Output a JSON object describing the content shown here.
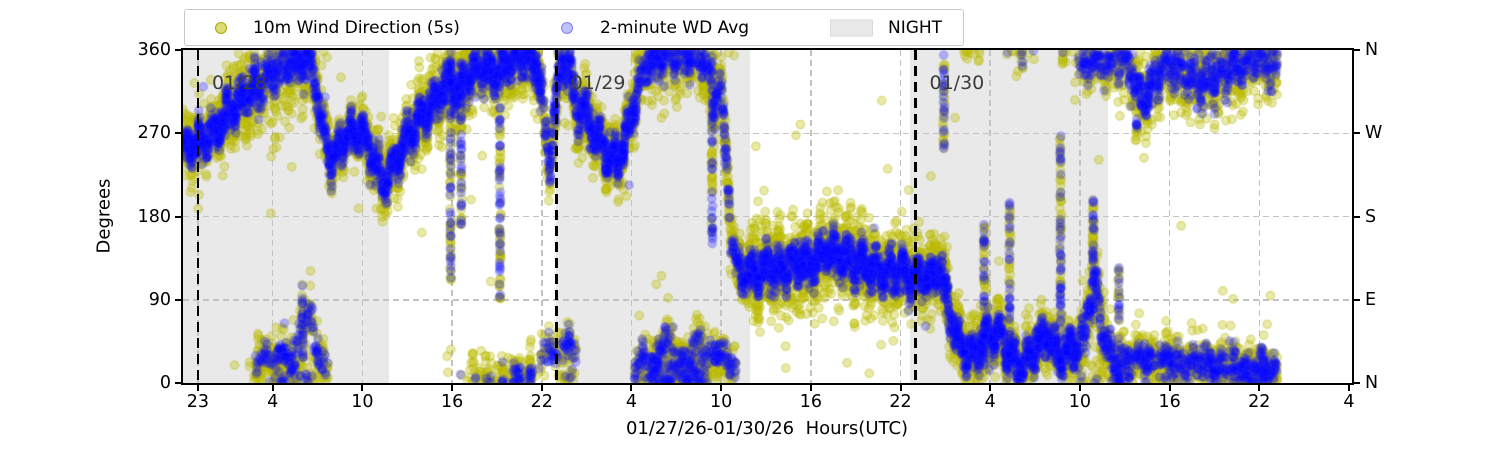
{
  "chart_data": {
    "type": "scatter",
    "title": "",
    "xlabel": "01/27/26-01/30/26  Hours(UTC)",
    "ylabel": "Degrees",
    "ylim": [
      0,
      360
    ],
    "x_range": [
      -1.0,
      77.2
    ],
    "grid": "dashed",
    "grid_color": "#c3c3c3",
    "background": "#ffffff",
    "night_color": "#e9e9e9",
    "legend_items": [
      {
        "label": "10m Wind Direction (5s)",
        "marker": "dot",
        "color": "#bfbf00",
        "face": "rgba(191,191,0,0.55)",
        "edge": "rgba(160,160,0,0.85)"
      },
      {
        "label": "2-minute WD Avg",
        "marker": "dot",
        "color": "#0000ff",
        "face": "rgba(130,130,245,0.50)",
        "edge": "rgba(100,100,230,0.70)"
      },
      {
        "label": "NIGHT",
        "marker": "patch",
        "color": "#e9e9e9",
        "face": "#e9e9e9",
        "edge": "#d8d8d8"
      }
    ],
    "xticks": [
      [
        0,
        "23"
      ],
      [
        5,
        "4"
      ],
      [
        11,
        "10"
      ],
      [
        17,
        "16"
      ],
      [
        23,
        "22"
      ],
      [
        29,
        "4"
      ],
      [
        35,
        "10"
      ],
      [
        41,
        "16"
      ],
      [
        47,
        "22"
      ],
      [
        53,
        "4"
      ],
      [
        59,
        "10"
      ],
      [
        65,
        "16"
      ],
      [
        71,
        "22"
      ],
      [
        77,
        "4"
      ]
    ],
    "yticks": [
      [
        0,
        "0",
        "N"
      ],
      [
        90,
        "90",
        "E"
      ],
      [
        180,
        "180",
        "S"
      ],
      [
        270,
        "270",
        "W"
      ],
      [
        360,
        "360",
        "N"
      ]
    ],
    "night_bands": [
      [
        -1.0,
        12.8
      ],
      [
        23.95,
        36.9
      ],
      [
        47.6,
        60.9
      ]
    ],
    "date_lines": [
      [
        0,
        "01/28"
      ],
      [
        24,
        "01/29"
      ],
      [
        48,
        "01/30"
      ]
    ],
    "data_t_range": [
      -1.0,
      72.2
    ],
    "series": [
      {
        "name": "10m Wind Direction (5s)",
        "cadence": "5s",
        "fill": "rgba(191,191,0,0.34)",
        "stroke": "rgba(178,178,0,0.38)",
        "marker_r": 4.2,
        "n_points": 9500,
        "tail_frac": 0.015,
        "tail_mult": 3.2
      },
      {
        "name": "2-minute WD Avg",
        "cadence": "2min",
        "fill": "rgba(0,0,255,0.26)",
        "stroke": "rgba(40,40,255,0.22)",
        "marker_r": 4.2,
        "n_points": 7500,
        "tail_frac": 0.008,
        "tail_mult": 2.6
      }
    ],
    "trend_anchors": [
      [
        -1,
        252,
        15,
        7
      ],
      [
        -0.2,
        260,
        15,
        7
      ],
      [
        0.6,
        266,
        15,
        7
      ],
      [
        1.4,
        278,
        17,
        8
      ],
      [
        2.2,
        295,
        19,
        8
      ],
      [
        3,
        308,
        22,
        9
      ],
      [
        4,
        320,
        26,
        10
      ],
      [
        5,
        334,
        28,
        10
      ],
      [
        6,
        347,
        28,
        10
      ],
      [
        7,
        352,
        27,
        10
      ],
      [
        7.7,
        344,
        22,
        9
      ],
      [
        8.3,
        278,
        16,
        8
      ],
      [
        9,
        237,
        14,
        7
      ],
      [
        9.5,
        258,
        14,
        7
      ],
      [
        10,
        267,
        14,
        7
      ],
      [
        11,
        271,
        15,
        7
      ],
      [
        11.7,
        243,
        15,
        7
      ],
      [
        12.4,
        216,
        14,
        7
      ],
      [
        13.1,
        236,
        14,
        7
      ],
      [
        14,
        263,
        16,
        8
      ],
      [
        15,
        288,
        18,
        8
      ],
      [
        16,
        307,
        20,
        9
      ],
      [
        16.9,
        328,
        20,
        9
      ],
      [
        17.4,
        312,
        22,
        9
      ],
      [
        18,
        332,
        20,
        9
      ],
      [
        19,
        344,
        20,
        9
      ],
      [
        20,
        334,
        20,
        9
      ],
      [
        21,
        348,
        18,
        9
      ],
      [
        22,
        354,
        18,
        9
      ],
      [
        22.8,
        338,
        18,
        9
      ],
      [
        23.5,
        232,
        16,
        8
      ],
      [
        23.9,
        298,
        18,
        9
      ],
      [
        24.3,
        347,
        18,
        9
      ],
      [
        24.9,
        341,
        18,
        9
      ],
      [
        25.4,
        288,
        18,
        9
      ],
      [
        25.9,
        298,
        18,
        9
      ],
      [
        26.5,
        268,
        18,
        9
      ],
      [
        27.1,
        258,
        16,
        8
      ],
      [
        27.7,
        238,
        16,
        8
      ],
      [
        28.4,
        250,
        16,
        8
      ],
      [
        29.1,
        300,
        18,
        9
      ],
      [
        30,
        349,
        20,
        10
      ],
      [
        31,
        357,
        22,
        10
      ],
      [
        32,
        359,
        22,
        10
      ],
      [
        33,
        357,
        22,
        10
      ],
      [
        34,
        354,
        22,
        10
      ],
      [
        34.5,
        298,
        20,
        9
      ],
      [
        34.9,
        337,
        18,
        9
      ],
      [
        35.4,
        228,
        16,
        8
      ],
      [
        35.7,
        158,
        16,
        8
      ],
      [
        36.1,
        122,
        14,
        7
      ],
      [
        37,
        118,
        20,
        9
      ],
      [
        38,
        128,
        22,
        10
      ],
      [
        39,
        124,
        22,
        10
      ],
      [
        40,
        132,
        22,
        10
      ],
      [
        41,
        128,
        24,
        10
      ],
      [
        42,
        142,
        24,
        10
      ],
      [
        43,
        136,
        24,
        10
      ],
      [
        44,
        132,
        22,
        10
      ],
      [
        45,
        124,
        22,
        10
      ],
      [
        46,
        118,
        20,
        9
      ],
      [
        47,
        120,
        20,
        9
      ],
      [
        48,
        116,
        18,
        9
      ],
      [
        49,
        112,
        18,
        9
      ],
      [
        49.6,
        128,
        18,
        9
      ],
      [
        50.2,
        82,
        18,
        9
      ],
      [
        50.8,
        48,
        16,
        8
      ],
      [
        51.6,
        28,
        16,
        8
      ],
      [
        52.6,
        46,
        16,
        8
      ],
      [
        53.6,
        56,
        16,
        8
      ],
      [
        54.4,
        26,
        14,
        7
      ],
      [
        55.1,
        16,
        14,
        7
      ],
      [
        56,
        38,
        16,
        8
      ],
      [
        56.8,
        54,
        16,
        8
      ],
      [
        57.6,
        26,
        14,
        7
      ],
      [
        58.6,
        36,
        16,
        8
      ],
      [
        59.4,
        56,
        18,
        9
      ],
      [
        59.9,
        128,
        24,
        10
      ],
      [
        60.4,
        62,
        18,
        9
      ],
      [
        61.1,
        30,
        16,
        8
      ],
      [
        61.6,
        -8,
        20,
        9
      ],
      [
        62.2,
        -10,
        22,
        10
      ],
      [
        62.8,
        -45,
        24,
        10
      ],
      [
        63.4,
        -55,
        24,
        10
      ],
      [
        64,
        -30,
        22,
        10
      ],
      [
        64.6,
        -15,
        22,
        10
      ],
      [
        65.3,
        -20,
        22,
        10
      ],
      [
        66,
        -25,
        22,
        10
      ],
      [
        67,
        -35,
        24,
        10
      ],
      [
        68,
        -30,
        24,
        10
      ],
      [
        69,
        -20,
        24,
        10
      ],
      [
        70,
        -12,
        22,
        10
      ],
      [
        71,
        -8,
        22,
        10
      ],
      [
        72.1,
        -15,
        22,
        10
      ]
    ],
    "secondary_clusters": [
      {
        "t0": 3.8,
        "t1": 8.7,
        "frac": 0.32,
        "sy": 14,
        "sb": 7,
        "pts": [
          [
            3.8,
            12
          ],
          [
            4.4,
            30
          ],
          [
            5,
            18
          ],
          [
            5.6,
            34
          ],
          [
            6.2,
            24
          ],
          [
            6.7,
            42
          ],
          [
            7,
            78
          ],
          [
            7.3,
            58
          ],
          [
            7.5,
            92
          ],
          [
            7.8,
            40
          ],
          [
            8.2,
            24
          ],
          [
            8.7,
            14
          ]
        ]
      },
      {
        "t0": 22.8,
        "t1": 25.3,
        "frac": 0.22,
        "sy": 16,
        "sb": 8,
        "pts": [
          [
            22.8,
            20
          ],
          [
            23.5,
            42
          ],
          [
            24.1,
            30
          ],
          [
            24.7,
            48
          ],
          [
            25.3,
            25
          ]
        ]
      },
      {
        "t0": 29.2,
        "t1": 36.0,
        "frac": 0.34,
        "sy": 14,
        "sb": 7,
        "pts": [
          [
            29.2,
            14
          ],
          [
            29.9,
            26
          ],
          [
            30.6,
            18
          ],
          [
            31.3,
            52
          ],
          [
            31.9,
            28
          ],
          [
            32.7,
            22
          ],
          [
            33.5,
            44
          ],
          [
            34.1,
            28
          ],
          [
            34.8,
            34
          ],
          [
            35.5,
            24
          ],
          [
            36,
            18
          ]
        ]
      },
      {
        "t0": 58.9,
        "t1": 61.3,
        "frac": 0.4,
        "sy": 16,
        "sb": 8,
        "pts": [
          [
            58.9,
            350
          ],
          [
            59.5,
            344
          ],
          [
            60.1,
            350
          ],
          [
            60.7,
            340
          ],
          [
            61.3,
            348
          ]
        ]
      },
      {
        "t0": 61.0,
        "t1": 72.2,
        "frac": 0.42,
        "sy": 14,
        "sb": 8,
        "pts": [
          [
            61,
            28
          ],
          [
            62,
            25
          ],
          [
            63,
            30
          ],
          [
            64,
            22
          ],
          [
            65,
            28
          ],
          [
            66,
            20
          ],
          [
            67,
            25
          ],
          [
            68,
            18
          ],
          [
            69,
            22
          ],
          [
            70,
            15
          ],
          [
            71,
            18
          ],
          [
            72.2,
            12
          ]
        ]
      }
    ],
    "streaks": [
      [
        7.0,
        25,
        112
      ],
      [
        16.9,
        110,
        358
      ],
      [
        17.6,
        170,
        350
      ],
      [
        20.2,
        88,
        298
      ],
      [
        34.4,
        150,
        356
      ],
      [
        49.9,
        252,
        360
      ],
      [
        52.6,
        5,
        172
      ],
      [
        54.3,
        10,
        198
      ],
      [
        57.7,
        15,
        268
      ],
      [
        59.9,
        60,
        200
      ],
      [
        61.6,
        2,
        128
      ],
      [
        62.8,
        262,
        300
      ]
    ],
    "render": {
      "seed": 42,
      "wiggle": [
        [
          9,
          6.8,
          1.2
        ],
        [
          6,
          16.7,
          0.4
        ],
        [
          4,
          37,
          0
        ]
      ]
    }
  }
}
